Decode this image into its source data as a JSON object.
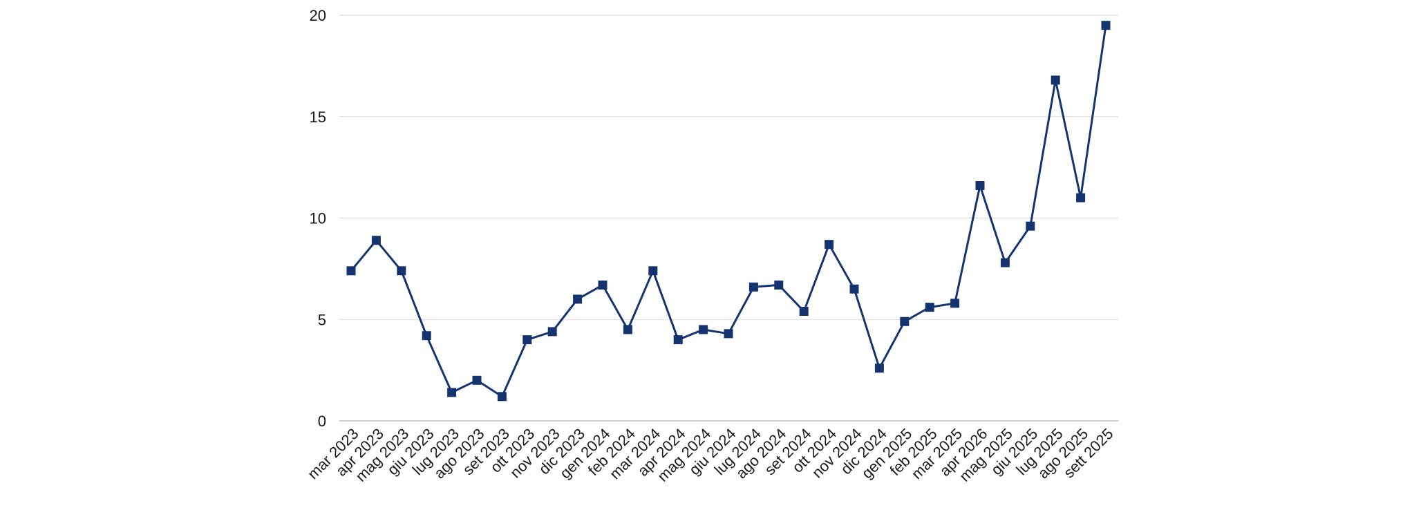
{
  "chart_data": {
    "type": "line",
    "title": "",
    "xlabel": "",
    "ylabel": "",
    "ylim": [
      0,
      20
    ],
    "yticks": [
      0,
      5,
      10,
      15,
      20
    ],
    "grid": true,
    "legend": "none",
    "marker": "square",
    "color": "#15336e",
    "categories": [
      "mar 2023",
      "apr 2023",
      "mag 2023",
      "giu 2023",
      "lug 2023",
      "ago 2023",
      "set 2023",
      "ott 2023",
      "nov 2023",
      "dic 2023",
      "gen 2024",
      "feb 2024",
      "mar 2024",
      "apr 2024",
      "mag 2024",
      "giu 2024",
      "lug 2024",
      "ago 2024",
      "set 2024",
      "ott 2024",
      "nov 2024",
      "dic 2024",
      "gen 2025",
      "feb 2025",
      "mar 2025",
      "apr 2026",
      "mag 2025",
      "giu 2025",
      "lug 2025",
      "ago 2025",
      "sett 2025"
    ],
    "series": [
      {
        "values": [
          7.4,
          8.9,
          7.4,
          4.2,
          1.4,
          2.0,
          1.2,
          4.0,
          4.4,
          6.0,
          6.7,
          4.5,
          7.4,
          4.0,
          4.5,
          4.3,
          6.6,
          6.7,
          5.4,
          8.7,
          6.5,
          2.6,
          4.9,
          5.6,
          5.8,
          11.6,
          7.8,
          9.6,
          16.8,
          11.0,
          19.5
        ]
      }
    ]
  }
}
